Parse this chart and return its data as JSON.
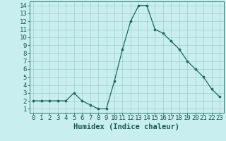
{
  "x": [
    0,
    1,
    2,
    3,
    4,
    5,
    6,
    7,
    8,
    9,
    10,
    11,
    12,
    13,
    14,
    15,
    16,
    17,
    18,
    19,
    20,
    21,
    22,
    23
  ],
  "y": [
    2.0,
    2.0,
    2.0,
    2.0,
    2.0,
    3.0,
    2.0,
    1.5,
    1.0,
    1.0,
    4.5,
    8.5,
    12.0,
    14.0,
    14.0,
    11.0,
    10.5,
    9.5,
    8.5,
    7.0,
    6.0,
    5.0,
    3.5,
    2.5
  ],
  "xlabel": "Humidex (Indice chaleur)",
  "xlim": [
    -0.5,
    23.5
  ],
  "ylim": [
    0.5,
    14.5
  ],
  "yticks": [
    1,
    2,
    3,
    4,
    5,
    6,
    7,
    8,
    9,
    10,
    11,
    12,
    13,
    14
  ],
  "xticks": [
    0,
    1,
    2,
    3,
    4,
    5,
    6,
    7,
    8,
    9,
    10,
    11,
    12,
    13,
    14,
    15,
    16,
    17,
    18,
    19,
    20,
    21,
    22,
    23
  ],
  "line_color": "#1a6b5a",
  "bg_color": "#c8eef0",
  "grid_color": "#9ed0cc",
  "tick_fontsize": 6.5,
  "xlabel_fontsize": 7.5
}
